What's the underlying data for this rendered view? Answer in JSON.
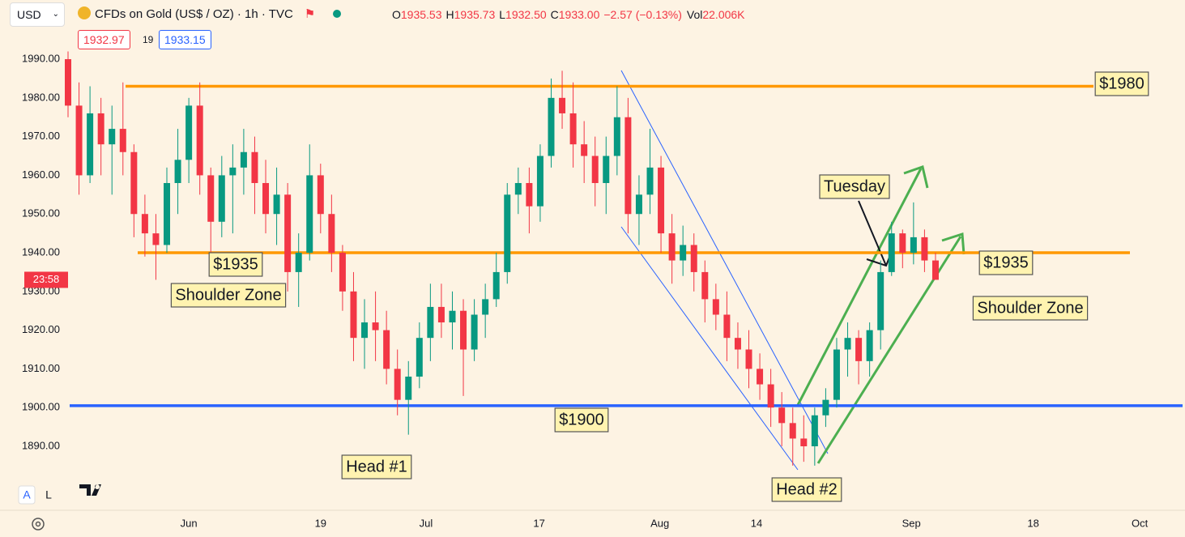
{
  "chart_data": {
    "type": "candlestick",
    "currency": "USD",
    "title": "CFDs on Gold (US$ / OZ) · 1h · TVC",
    "ohlc": [
      {
        "label": "O",
        "value": "1935.53"
      },
      {
        "label": "H",
        "value": "1935.73"
      },
      {
        "label": "L",
        "value": "1932.50"
      },
      {
        "label": "C",
        "value": "1933.00"
      }
    ],
    "change": "−2.57 (−0.13%)",
    "volume": {
      "label": "Vol",
      "value": "22.006K"
    },
    "bid": "1932.97",
    "spread": "19",
    "ask": "1933.15",
    "countdown": "23:58",
    "up_color": "#089981",
    "down_color": "#f23645",
    "x": [
      -11,
      -10,
      -9,
      -8,
      -7,
      -6,
      -5,
      -4,
      -3,
      -2,
      -1,
      0,
      1,
      2,
      3,
      4,
      5,
      6,
      7,
      8,
      9,
      10,
      11,
      12,
      13,
      14,
      15,
      16,
      17,
      18,
      19,
      20,
      21,
      22,
      23,
      24,
      25,
      26,
      27,
      28,
      29,
      30,
      31,
      32,
      33,
      34,
      35,
      36,
      37,
      38,
      39,
      40,
      41,
      42,
      43,
      44,
      45,
      46,
      47,
      48,
      49,
      50,
      51,
      52,
      53,
      54,
      55,
      56,
      57,
      58,
      59,
      60,
      61,
      62,
      63,
      64,
      65,
      66,
      67,
      68
    ],
    "open": [
      1990,
      1978,
      1960,
      1976,
      1968,
      1972,
      1966,
      1950,
      1945,
      1942,
      1958,
      1964,
      1978,
      1960,
      1948,
      1960,
      1962,
      1966,
      1958,
      1950,
      1955,
      1935,
      1940,
      1960,
      1950,
      1940,
      1930,
      1918,
      1922,
      1920,
      1910,
      1902,
      1908,
      1918,
      1926,
      1922,
      1925,
      1915,
      1924,
      1928,
      1935,
      1955,
      1958,
      1952,
      1965,
      1980,
      1976,
      1968,
      1965,
      1958,
      1965,
      1975,
      1950,
      1955,
      1962,
      1945,
      1938,
      1942,
      1935,
      1928,
      1924,
      1918,
      1915,
      1910,
      1906,
      1900,
      1896,
      1892,
      1890,
      1898,
      1902,
      1915,
      1918,
      1912,
      1920,
      1935,
      1945,
      1940,
      1944,
      1938
    ],
    "high": [
      1992,
      1984,
      1983,
      1980,
      1978,
      1984,
      1968,
      1955,
      1950,
      1962,
      1972,
      1980,
      1984,
      1962,
      1965,
      1968,
      1972,
      1970,
      1964,
      1962,
      1958,
      1945,
      1968,
      1963,
      1955,
      1942,
      1935,
      1928,
      1930,
      1925,
      1915,
      1912,
      1922,
      1932,
      1932,
      1930,
      1928,
      1928,
      1932,
      1940,
      1958,
      1962,
      1962,
      1968,
      1985,
      1987,
      1984,
      1974,
      1970,
      1970,
      1983,
      1980,
      1960,
      1972,
      1965,
      1950,
      1947,
      1945,
      1938,
      1932,
      1930,
      1922,
      1920,
      1914,
      1910,
      1904,
      1900,
      1898,
      1900,
      1905,
      1918,
      1922,
      1920,
      1922,
      1938,
      1948,
      1946,
      1953,
      1946,
      1940
    ],
    "low": [
      1975,
      1955,
      1958,
      1960,
      1955,
      1960,
      1944,
      1939,
      1933,
      1940,
      1950,
      1958,
      1955,
      1938,
      1944,
      1945,
      1955,
      1950,
      1945,
      1942,
      1930,
      1926,
      1938,
      1945,
      1935,
      1925,
      1912,
      1910,
      1912,
      1906,
      1898,
      1893,
      1905,
      1912,
      1918,
      1915,
      1903,
      1912,
      1918,
      1926,
      1932,
      1950,
      1945,
      1948,
      1962,
      1972,
      1962,
      1958,
      1952,
      1950,
      1960,
      1945,
      1942,
      1950,
      1940,
      1932,
      1934,
      1930,
      1922,
      1920,
      1912,
      1910,
      1905,
      1902,
      1895,
      1890,
      1885,
      1886,
      1885,
      1895,
      1900,
      1908,
      1906,
      1908,
      1915,
      1934,
      1936,
      1937,
      1935,
      1933
    ],
    "close": [
      1978,
      1960,
      1976,
      1968,
      1972,
      1966,
      1950,
      1945,
      1942,
      1958,
      1964,
      1978,
      1960,
      1948,
      1960,
      1962,
      1966,
      1958,
      1950,
      1955,
      1935,
      1940,
      1960,
      1950,
      1940,
      1930,
      1918,
      1922,
      1920,
      1910,
      1902,
      1908,
      1918,
      1926,
      1922,
      1925,
      1915,
      1924,
      1928,
      1935,
      1955,
      1958,
      1952,
      1965,
      1980,
      1976,
      1968,
      1965,
      1958,
      1965,
      1975,
      1950,
      1955,
      1962,
      1945,
      1938,
      1942,
      1935,
      1928,
      1924,
      1918,
      1915,
      1910,
      1906,
      1900,
      1896,
      1892,
      1890,
      1898,
      1902,
      1915,
      1918,
      1912,
      1920,
      1935,
      1945,
      1940,
      1944,
      1938,
      1933
    ],
    "xlim": [
      -11,
      90.5
    ],
    "xticks": [
      {
        "value": 0,
        "label": "Jun"
      },
      {
        "value": 12,
        "label": "19"
      },
      {
        "value": 21.6,
        "label": "Jul"
      },
      {
        "value": 31.9,
        "label": "17"
      },
      {
        "value": 42.9,
        "label": "Aug"
      },
      {
        "value": 51.7,
        "label": "14"
      },
      {
        "value": 65.8,
        "label": "Sep"
      },
      {
        "value": 76.9,
        "label": "18"
      },
      {
        "value": 86.6,
        "label": "Oct"
      }
    ],
    "ylim": [
      1880,
      1993
    ],
    "yticks": [
      {
        "value": 1890,
        "label": "1890.00"
      },
      {
        "value": 1900,
        "label": "1900.00"
      },
      {
        "value": 1910,
        "label": "1910.00"
      },
      {
        "value": 1920,
        "label": "1920.00"
      },
      {
        "value": 1930,
        "label": "1930.00"
      },
      {
        "value": 1940,
        "label": "1940.00"
      },
      {
        "value": 1950,
        "label": "1950.00"
      },
      {
        "value": 1960,
        "label": "1960.00"
      },
      {
        "value": 1970,
        "label": "1970.00"
      },
      {
        "value": 1980,
        "label": "1980.00"
      },
      {
        "value": 1990,
        "label": "1990.00"
      }
    ],
    "grid": false,
    "levels": [
      {
        "value": 1983,
        "color": "#ff9800"
      },
      {
        "value": 1940,
        "color": "#ff9800"
      },
      {
        "value": 1900.5,
        "color": "#2962ff"
      }
    ],
    "annotations": [
      "$1980",
      "$1935",
      "Shoulder Zone",
      "$1900",
      "Head #1",
      "Head #2",
      "Tuesday",
      "$1935",
      "Shoulder Zone"
    ],
    "buttons": [
      "A",
      "L"
    ]
  }
}
